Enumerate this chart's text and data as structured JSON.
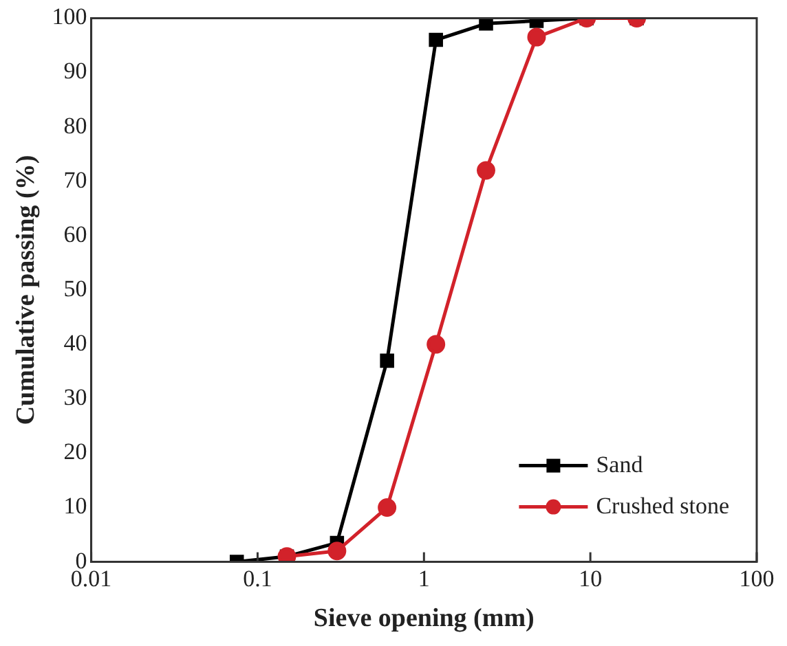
{
  "chart_data": {
    "type": "line",
    "xlabel": "Sieve opening (mm)",
    "ylabel": "Cumulative passing (%)",
    "log": "x",
    "xlim": [
      0.01,
      100
    ],
    "xticks": [
      0.01,
      0.1,
      1,
      10,
      100
    ],
    "ylim": [
      0,
      100
    ],
    "yticks": [
      0,
      10,
      20,
      30,
      40,
      50,
      60,
      70,
      80,
      90,
      100
    ],
    "grid": false,
    "legend": "bottom right",
    "line_style": "solid",
    "series": [
      {
        "name": "Sand",
        "color": "#000000",
        "marker": "square",
        "x": [
          0.075,
          0.15,
          0.3,
          0.6,
          1.18,
          2.36,
          4.75,
          9.5,
          19
        ],
        "values": [
          0,
          1,
          3.5,
          37,
          96,
          99,
          99.5,
          100,
          100
        ]
      },
      {
        "name": "Crushed stone",
        "color": "#d2222a",
        "marker": "circle",
        "x": [
          0.15,
          0.3,
          0.6,
          1.18,
          2.36,
          4.75,
          9.5,
          19
        ],
        "values": [
          1,
          2,
          10,
          40,
          72,
          96.5,
          100,
          100
        ]
      }
    ]
  }
}
